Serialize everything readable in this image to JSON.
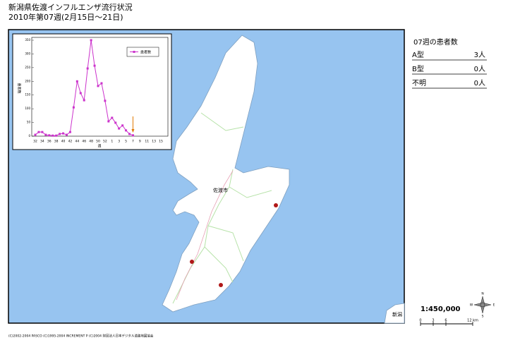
{
  "header": {
    "title": "新潟県佐渡インフルエンザ流行状況",
    "subtitle": "2010年第07週(2月15日～21日)"
  },
  "chart_data": {
    "type": "line",
    "categories": [
      "32",
      null,
      "34",
      null,
      "36",
      null,
      "38",
      null,
      "40",
      null,
      "42",
      null,
      "44",
      null,
      "46",
      null,
      "48",
      null,
      "50",
      null,
      "52",
      null,
      "1",
      null,
      "3",
      null,
      "5",
      null,
      "7",
      null,
      "9",
      null,
      "11",
      null,
      "13",
      null,
      "15"
    ],
    "series": [
      {
        "name": "患者数",
        "color": "#cc33cc",
        "values": [
          5,
          15,
          15,
          5,
          3,
          2,
          2,
          8,
          10,
          5,
          15,
          105,
          200,
          157,
          131,
          247,
          350,
          257,
          183,
          193,
          129,
          54,
          67,
          49,
          28,
          39,
          21,
          8,
          3,
          null,
          null,
          null,
          null,
          null,
          null,
          null,
          null
        ]
      }
    ],
    "ylim": [
      0,
      350
    ],
    "yticks": [
      0,
      50,
      100,
      150,
      200,
      250,
      300,
      350
    ],
    "y_label": "患者数",
    "x_label": "週"
  },
  "panel": {
    "title": "07週の患者数",
    "rows": [
      [
        "A型",
        "3人"
      ],
      [
        "B型",
        "0人"
      ],
      [
        "不明",
        "0人"
      ]
    ]
  },
  "map": {
    "city": "佐渡市",
    "corner_label": "新潟",
    "scale": "1:450,000",
    "scale_ticks": [
      "0",
      "3",
      "6",
      "12 km"
    ],
    "compass": [
      "N",
      "W",
      "E",
      "S"
    ],
    "credits": "(C)2002-2004 PASCO (C)1995-2004 INCREMENT P (C)2004 財団法人日本デジタル道路地図協会"
  }
}
